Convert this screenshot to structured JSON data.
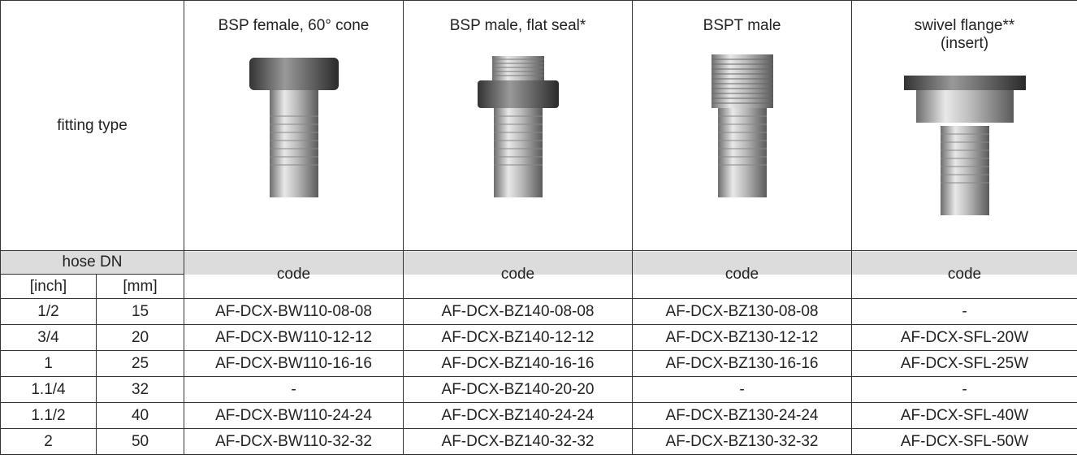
{
  "header": {
    "fitting_type": "fitting type",
    "columns": [
      {
        "title": [
          "BSP female, 60° cone"
        ],
        "code": "code"
      },
      {
        "title": [
          "BSP male, flat seal*"
        ],
        "code": "code"
      },
      {
        "title": [
          "BSPT male"
        ],
        "code": "code"
      },
      {
        "title": [
          "swivel flange**",
          "(insert)"
        ],
        "code": "code"
      }
    ]
  },
  "subheader": {
    "hose_dn": "hose DN",
    "inch": "[inch]",
    "mm": "[mm]"
  },
  "table": {
    "rows": [
      [
        "1/2",
        "15",
        "AF-DCX-BW110-08-08",
        "AF-DCX-BZ140-08-08",
        "AF-DCX-BZ130-08-08",
        "-"
      ],
      [
        "3/4",
        "20",
        "AF-DCX-BW110-12-12",
        "AF-DCX-BZ140-12-12",
        "AF-DCX-BZ130-12-12",
        "AF-DCX-SFL-20W"
      ],
      [
        "1",
        "25",
        "AF-DCX-BW110-16-16",
        "AF-DCX-BZ140-16-16",
        "AF-DCX-BZ130-16-16",
        "AF-DCX-SFL-25W"
      ],
      [
        "1.1/4",
        "32",
        "-",
        "AF-DCX-BZ140-20-20",
        "-",
        "-"
      ],
      [
        "1.1/2",
        "40",
        "AF-DCX-BW110-24-24",
        "AF-DCX-BZ140-24-24",
        "AF-DCX-BZ130-24-24",
        "AF-DCX-SFL-40W"
      ],
      [
        "2",
        "50",
        "AF-DCX-BW110-32-32",
        "AF-DCX-BZ140-32-32",
        "AF-DCX-BZ130-32-32",
        "AF-DCX-SFL-50W"
      ]
    ]
  }
}
